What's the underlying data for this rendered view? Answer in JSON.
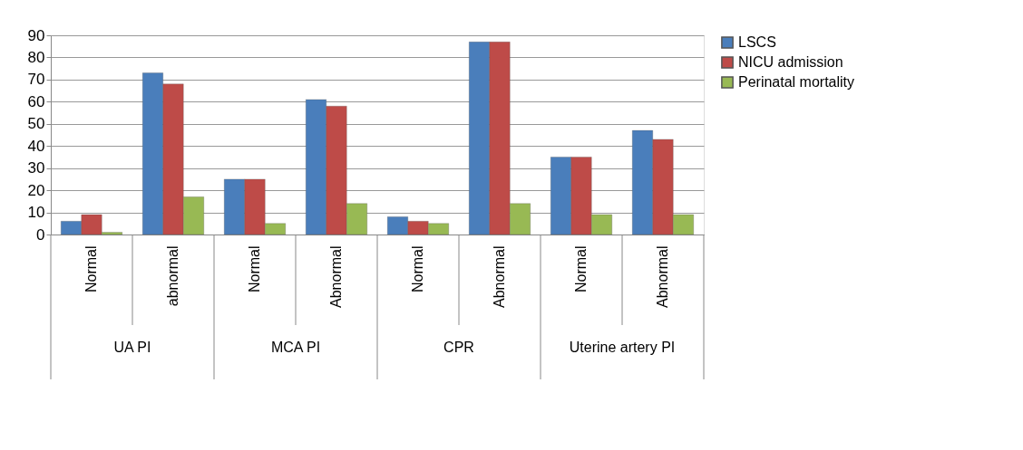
{
  "chart_data": {
    "type": "bar",
    "categories": [
      "Normal",
      "abnormal",
      "Normal",
      "Abnormal",
      "Normal",
      "Abnormal",
      "Normal",
      "Abnormal"
    ],
    "series": [
      {
        "name": "LSCS",
        "color": "#4a7ebb",
        "values": [
          6,
          73,
          25,
          61,
          8,
          87,
          35,
          47
        ]
      },
      {
        "name": "NICU admission",
        "color": "#be4b48",
        "values": [
          9,
          68,
          25,
          58,
          6,
          87,
          35,
          43
        ]
      },
      {
        "name": "Perinatal mortality",
        "color": "#98b954",
        "values": [
          1,
          17,
          5,
          14,
          5,
          14,
          9,
          9
        ]
      }
    ],
    "annotations": [
      "UA PI",
      "MCA PI",
      "CPR",
      "Uterine artery PI"
    ],
    "ylim": [
      0,
      90
    ],
    "yticks": [
      0,
      10,
      20,
      30,
      40,
      50,
      60,
      70,
      80,
      90
    ],
    "grid": "y",
    "legend": "right"
  }
}
